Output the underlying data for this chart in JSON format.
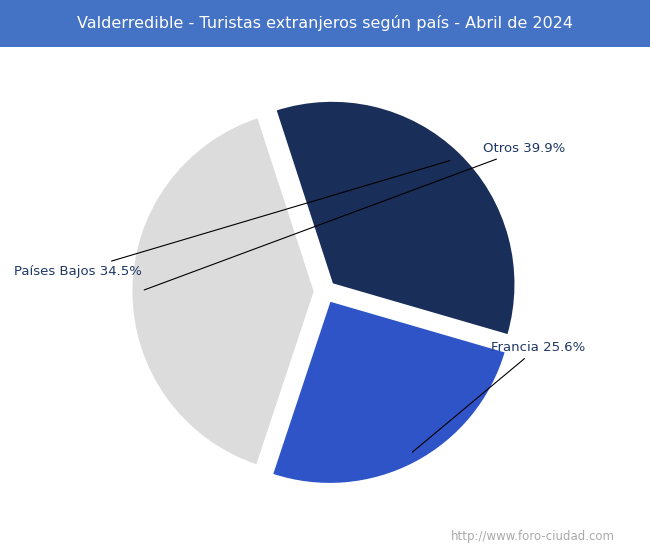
{
  "title": "Valderredible - Turistas extranjeros según país - Abril de 2024",
  "title_bg_color": "#4472c4",
  "title_text_color": "#ffffff",
  "title_fontsize": 11.5,
  "slices": [
    {
      "label": "Otros",
      "pct": 39.9,
      "color": "#dcdcdc"
    },
    {
      "label": "Francia",
      "pct": 25.6,
      "color": "#2e54c8"
    },
    {
      "label": "Países Bajos",
      "pct": 34.5,
      "color": "#1a2e5a"
    }
  ],
  "explode": [
    0.04,
    0.04,
    0.04
  ],
  "label_color": "#1f3864",
  "label_fontsize": 9.5,
  "watermark": "http://www.foro-ciudad.com",
  "watermark_color": "#aaaaaa",
  "watermark_fontsize": 8.5,
  "startangle": 108,
  "fig_bg_color": "#ffffff"
}
